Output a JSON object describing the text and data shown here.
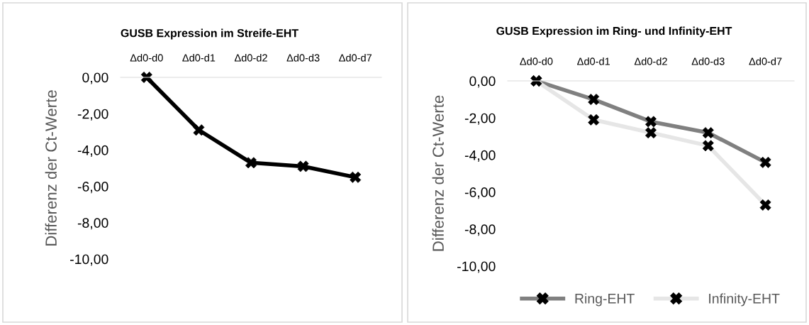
{
  "chart_data": [
    {
      "type": "line",
      "title": "GUSB Expression im Streife-EHT",
      "ylabel": "Differenz der Ct-Werte",
      "categories": [
        "Δd0-d0",
        "Δd0-d1",
        "Δd0-d2",
        "Δd0-d3",
        "Δd0-d7"
      ],
      "series": [
        {
          "color": "#000000",
          "values": [
            0,
            -2.9,
            -4.7,
            -4.9,
            -5.5
          ]
        }
      ],
      "ylim": [
        -10,
        0
      ],
      "yticks": [
        {
          "value": 0,
          "label": "0,00"
        },
        {
          "value": -2,
          "label": "-2,00"
        },
        {
          "value": -4,
          "label": "-4,00"
        },
        {
          "value": -6,
          "label": "-6,00"
        },
        {
          "value": -8,
          "label": "-8,00"
        },
        {
          "value": -10,
          "label": "-10,00"
        }
      ],
      "marker": "cross",
      "line_style": "solid",
      "grid": false,
      "legend": false
    },
    {
      "type": "line",
      "title": "GUSB Expression im Ring- und Infinity-EHT",
      "ylabel": "Differenz der Ct-Werte",
      "categories": [
        "Δd0-d0",
        "Δd0-d1",
        "Δd0-d2",
        "Δd0-d3",
        "Δd0-d7"
      ],
      "series": [
        {
          "name": "Ring-EHT",
          "color": "#808080",
          "values": [
            0,
            -1.0,
            -2.2,
            -2.8,
            -4.4
          ]
        },
        {
          "name": "Infinity-EHT",
          "color": "#e6e6e6",
          "values": [
            0,
            -2.1,
            -2.8,
            -3.5,
            -6.7
          ]
        }
      ],
      "ylim": [
        -10,
        0
      ],
      "yticks": [
        {
          "value": 0,
          "label": "0,00"
        },
        {
          "value": -2,
          "label": "-2,00"
        },
        {
          "value": -4,
          "label": "-4,00"
        },
        {
          "value": -6,
          "label": "-6,00"
        },
        {
          "value": -8,
          "label": "-8,00"
        },
        {
          "value": -10,
          "label": "-10,00"
        }
      ],
      "marker": "cross",
      "line_style": "solid",
      "grid": false,
      "legend": "bottom"
    }
  ]
}
